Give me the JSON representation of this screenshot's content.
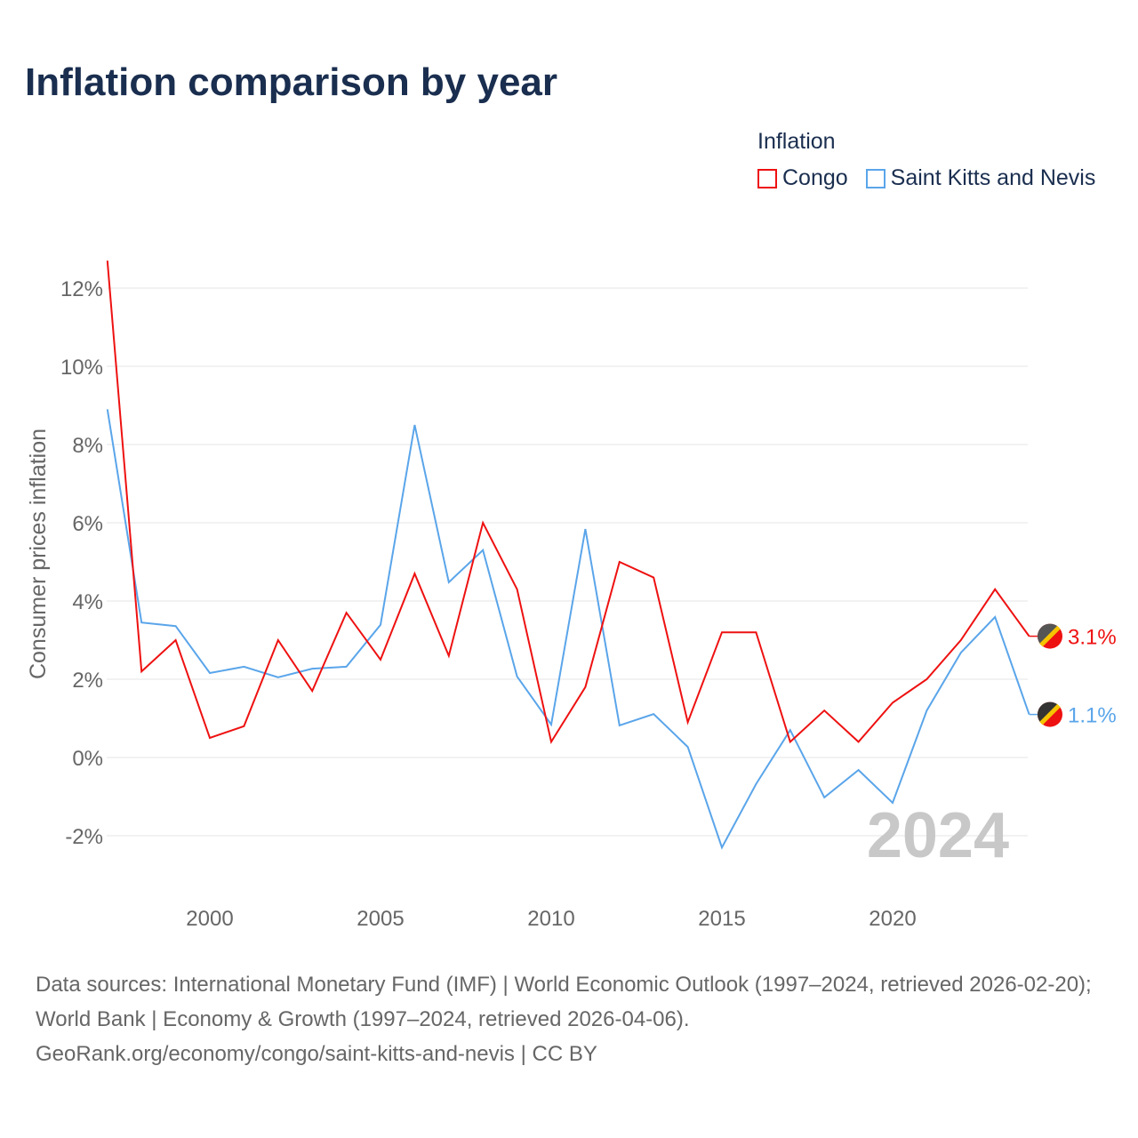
{
  "title": "Inflation comparison by year",
  "legend": {
    "title": "Inflation",
    "items": [
      {
        "name": "Congo",
        "color": "#ee1111"
      },
      {
        "name": "Saint Kitts and Nevis",
        "color": "#5aa5ea"
      }
    ]
  },
  "watermark_year": "2024",
  "source": {
    "line1": "Data sources: International Monetary Fund (IMF) | World Economic Outlook (1997–2024, retrieved 2026-02-20); World Bank | Economy & Growth (1997–2024, retrieved 2026-04-06).",
    "line2": "GeoRank.org/economy/congo/saint-kitts-and-nevis | CC BY"
  },
  "chart_data": {
    "type": "line",
    "title": "Inflation comparison by year",
    "xlabel": "",
    "ylabel": "Consumer prices inflation",
    "x": [
      1997,
      1998,
      1999,
      2000,
      2001,
      2002,
      2003,
      2004,
      2005,
      2006,
      2007,
      2008,
      2009,
      2010,
      2011,
      2012,
      2013,
      2014,
      2015,
      2016,
      2017,
      2018,
      2019,
      2020,
      2021,
      2022,
      2023,
      2024
    ],
    "xlim": [
      1997,
      2024
    ],
    "ylim": [
      -3,
      13
    ],
    "xticks": [
      2000,
      2005,
      2010,
      2015,
      2020
    ],
    "xtick_labels": [
      "2000",
      "2005",
      "2010",
      "2015",
      "2020"
    ],
    "yticks": [
      -2,
      0,
      2,
      4,
      6,
      8,
      10,
      12
    ],
    "ytick_labels": [
      "-2%",
      "0%",
      "2%",
      "4%",
      "6%",
      "8%",
      "10%",
      "12%"
    ],
    "grid": true,
    "legend_position": "top-right",
    "series": [
      {
        "name": "Congo",
        "color": "#ee1111",
        "end_label": "3.1%",
        "values": [
          12.7,
          2.2,
          3.0,
          0.5,
          0.8,
          3.0,
          1.7,
          3.7,
          2.5,
          4.7,
          2.6,
          6.0,
          4.3,
          0.4,
          1.8,
          5.0,
          4.6,
          0.9,
          3.2,
          3.2,
          0.4,
          1.2,
          0.4,
          1.4,
          2.0,
          3.0,
          4.3,
          3.1
        ]
      },
      {
        "name": "Saint Kitts and Nevis",
        "color": "#5aa5ea",
        "end_label": "1.1%",
        "values": [
          8.9,
          3.45,
          3.36,
          2.16,
          2.32,
          2.05,
          2.27,
          2.32,
          3.39,
          8.5,
          4.48,
          5.3,
          2.07,
          0.84,
          5.84,
          0.82,
          1.11,
          0.27,
          -2.3,
          -0.68,
          0.7,
          -1.02,
          -0.32,
          -1.16,
          1.2,
          2.68,
          3.59,
          1.1
        ]
      }
    ]
  }
}
